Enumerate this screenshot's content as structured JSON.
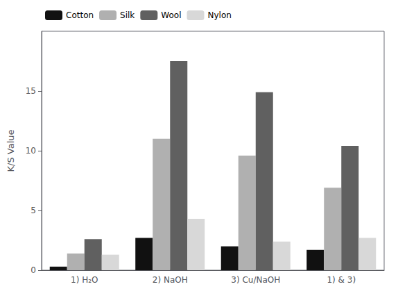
{
  "chart_data": {
    "type": "bar",
    "categories": [
      "1) H₂O",
      "2) NaOH",
      "3) Cu/NaOH",
      "1) & 3)"
    ],
    "series": [
      {
        "name": "Cotton",
        "color": "#111111",
        "values": [
          0.3,
          2.7,
          2.0,
          1.7
        ]
      },
      {
        "name": "Silk",
        "color": "#b0b0b0",
        "values": [
          1.4,
          11.0,
          9.6,
          6.9
        ]
      },
      {
        "name": "Wool",
        "color": "#606060",
        "values": [
          2.6,
          17.5,
          14.9,
          10.4
        ]
      },
      {
        "name": "Nylon",
        "color": "#d8d8d8",
        "values": [
          1.3,
          4.3,
          2.4,
          2.7
        ]
      }
    ],
    "ylabel": "K/S Value",
    "ylim": [
      0,
      20
    ],
    "yticks": [
      0,
      5,
      10,
      15
    ],
    "grid": false,
    "legend": "upper left"
  }
}
